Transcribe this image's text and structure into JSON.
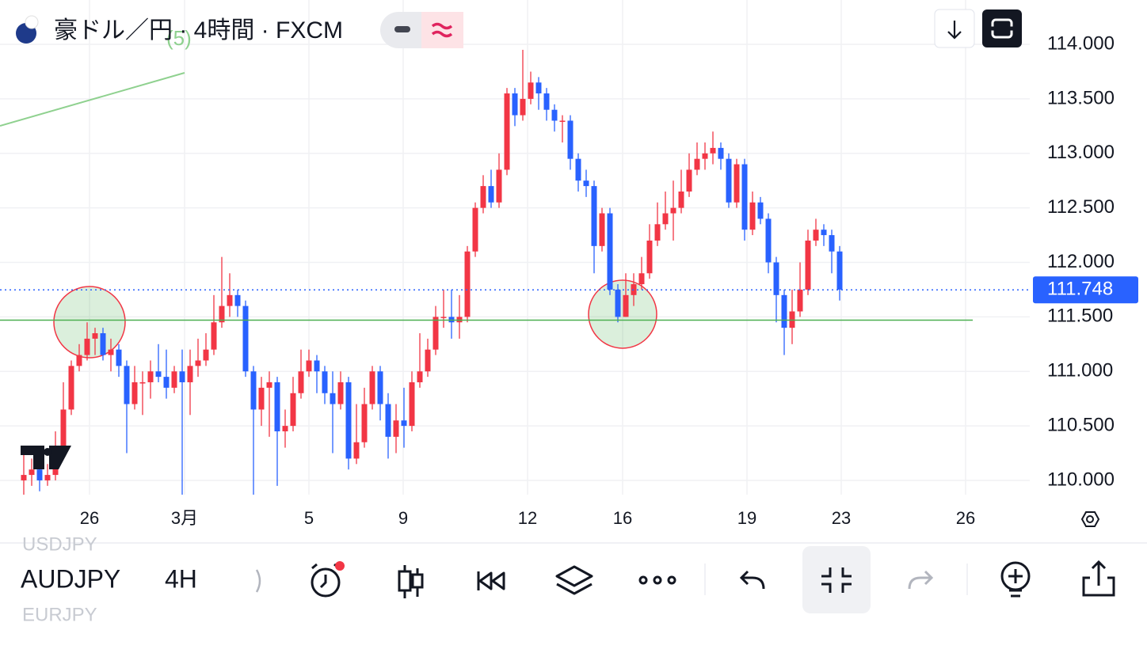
{
  "chart_data": {
    "type": "candlestick",
    "title": "豪ドル／円 · 4時間 · FXCM",
    "annotation": "(5)",
    "up_color": "#f23645",
    "down_color": "#2962ff",
    "xlim": [
      -3,
      127
    ],
    "xticks": [
      {
        "value": 8.3,
        "label": "26"
      },
      {
        "value": 20.3,
        "label": "3月"
      },
      {
        "value": 36,
        "label": "5"
      },
      {
        "value": 47.9,
        "label": "9"
      },
      {
        "value": 63.6,
        "label": "12"
      },
      {
        "value": 75.6,
        "label": "16"
      },
      {
        "value": 91.3,
        "label": "19"
      },
      {
        "value": 103.2,
        "label": "23"
      },
      {
        "value": 118.9,
        "label": "26"
      }
    ],
    "ylim": [
      109.869,
      114.407
    ],
    "yticks": [
      {
        "value": 110,
        "label": "110.000"
      },
      {
        "value": 110.5,
        "label": "110.500"
      },
      {
        "value": 111,
        "label": "111.000"
      },
      {
        "value": 111.5,
        "label": "111.500"
      },
      {
        "value": 112,
        "label": "112.000"
      },
      {
        "value": 112.5,
        "label": "112.500"
      },
      {
        "value": 113,
        "label": "113.000"
      },
      {
        "value": 113.5,
        "label": "113.500"
      },
      {
        "value": 114,
        "label": "114.000"
      }
    ],
    "grid": true,
    "last_price": 111.748,
    "horizontal_line": 111.47,
    "open": [
      110.0,
      110.05,
      110.1,
      110.0,
      110.05,
      110.3,
      110.65,
      111.05,
      111.15,
      111.3,
      111.35,
      111.15,
      111.2,
      111.05,
      110.7,
      110.9,
      110.9,
      111.0,
      110.95,
      110.85,
      111.0,
      110.9,
      111.05,
      111.1,
      111.2,
      111.45,
      111.6,
      111.7,
      111.6,
      111.0,
      110.65,
      110.85,
      110.9,
      110.45,
      110.5,
      110.8,
      111.0,
      111.1,
      111.0,
      110.8,
      110.7,
      110.9,
      110.2,
      110.35,
      110.7,
      111.0,
      110.7,
      110.4,
      110.55,
      110.5,
      110.9,
      111.0,
      111.2,
      111.5,
      111.5,
      111.45,
      111.5,
      112.1,
      112.5,
      112.7,
      112.55,
      112.85,
      113.55,
      113.35,
      113.5,
      113.65,
      113.55,
      113.4,
      113.3,
      113.3,
      112.95,
      112.75,
      112.7,
      112.15,
      112.45,
      111.75,
      111.5,
      111.7,
      111.8,
      111.9,
      112.2,
      112.35,
      112.45,
      112.5,
      112.65,
      112.85,
      112.95,
      113.0,
      113.05,
      112.95,
      112.55,
      112.9,
      112.3,
      112.55,
      112.4,
      112.0,
      111.7,
      111.4,
      111.55,
      111.75,
      112.2,
      112.3,
      112.25,
      112.1
    ],
    "high": [
      110.3,
      110.2,
      110.15,
      110.15,
      110.45,
      110.9,
      111.1,
      111.25,
      111.45,
      111.4,
      111.4,
      111.3,
      111.25,
      111.1,
      111.05,
      111.0,
      111.1,
      111.25,
      111.2,
      111.05,
      111.2,
      111.2,
      111.3,
      111.35,
      111.7,
      112.05,
      111.9,
      111.75,
      111.65,
      111.05,
      110.95,
      111.0,
      110.95,
      110.65,
      110.95,
      111.2,
      111.2,
      111.15,
      111.05,
      111.0,
      111.0,
      110.95,
      110.7,
      110.85,
      111.05,
      111.05,
      110.8,
      110.7,
      110.85,
      111.0,
      111.35,
      111.3,
      111.6,
      111.75,
      111.75,
      111.7,
      112.15,
      112.55,
      112.8,
      112.85,
      113.0,
      113.6,
      113.6,
      113.95,
      113.75,
      113.7,
      113.6,
      113.45,
      113.35,
      113.35,
      113.0,
      112.85,
      112.75,
      112.5,
      112.5,
      111.8,
      111.9,
      111.9,
      112.05,
      112.35,
      112.55,
      112.65,
      112.75,
      112.85,
      113.0,
      113.1,
      113.1,
      113.2,
      113.1,
      113.0,
      112.95,
      112.95,
      112.65,
      112.6,
      112.45,
      112.05,
      111.75,
      111.75,
      112.0,
      112.3,
      112.4,
      112.35,
      112.3,
      112.15
    ],
    "low": [
      109.85,
      109.95,
      109.9,
      109.95,
      110.0,
      110.25,
      110.6,
      111.0,
      111.1,
      111.15,
      111.1,
      111.0,
      110.95,
      110.25,
      110.65,
      110.6,
      110.75,
      110.9,
      110.75,
      110.8,
      109.8,
      110.6,
      110.95,
      111.05,
      111.15,
      111.4,
      111.5,
      111.5,
      110.95,
      109.85,
      110.5,
      110.4,
      109.95,
      110.3,
      110.45,
      110.75,
      110.95,
      110.8,
      110.7,
      110.25,
      110.65,
      110.1,
      110.15,
      110.3,
      110.65,
      110.55,
      110.2,
      110.25,
      110.3,
      110.45,
      110.85,
      110.95,
      111.15,
      111.4,
      111.3,
      111.3,
      111.45,
      112.05,
      112.45,
      112.5,
      112.5,
      112.8,
      113.25,
      113.3,
      113.45,
      113.4,
      113.3,
      113.2,
      113.1,
      112.85,
      112.65,
      112.6,
      111.9,
      112.1,
      111.7,
      111.45,
      111.5,
      111.6,
      111.75,
      111.85,
      112.15,
      112.3,
      112.2,
      112.45,
      112.6,
      112.8,
      112.85,
      112.9,
      112.85,
      112.5,
      112.5,
      112.2,
      112.25,
      112.35,
      111.9,
      111.45,
      111.15,
      111.25,
      111.5,
      111.7,
      112.15,
      112.15,
      111.9,
      111.65
    ],
    "close": [
      110.05,
      110.1,
      110.0,
      110.05,
      110.3,
      110.65,
      111.05,
      111.15,
      111.3,
      111.35,
      111.15,
      111.2,
      111.05,
      110.7,
      110.9,
      110.9,
      111.0,
      110.95,
      110.85,
      111.0,
      110.9,
      111.05,
      111.1,
      111.2,
      111.45,
      111.6,
      111.7,
      111.6,
      111.0,
      110.65,
      110.85,
      110.9,
      110.45,
      110.5,
      110.8,
      111.0,
      111.1,
      111.0,
      110.8,
      110.7,
      110.9,
      110.2,
      110.35,
      110.7,
      111.0,
      110.7,
      110.4,
      110.55,
      110.5,
      110.9,
      111.0,
      111.2,
      111.5,
      111.5,
      111.45,
      111.5,
      112.1,
      112.5,
      112.7,
      112.55,
      112.85,
      113.55,
      113.35,
      113.5,
      113.65,
      113.55,
      113.4,
      113.3,
      113.3,
      112.95,
      112.75,
      112.7,
      112.15,
      112.45,
      111.75,
      111.5,
      111.7,
      111.8,
      111.9,
      112.2,
      112.35,
      112.45,
      112.5,
      112.65,
      112.85,
      112.95,
      113.0,
      113.05,
      112.95,
      112.55,
      112.9,
      112.3,
      112.55,
      112.4,
      112.0,
      111.7,
      111.4,
      111.55,
      111.75,
      112.2,
      112.3,
      112.25,
      112.1,
      111.75
    ]
  },
  "toolbar": {
    "prev_symbol": "USDJPY",
    "symbol": "AUDJPY",
    "next_symbol": "EURJPY",
    "interval": "4H"
  }
}
